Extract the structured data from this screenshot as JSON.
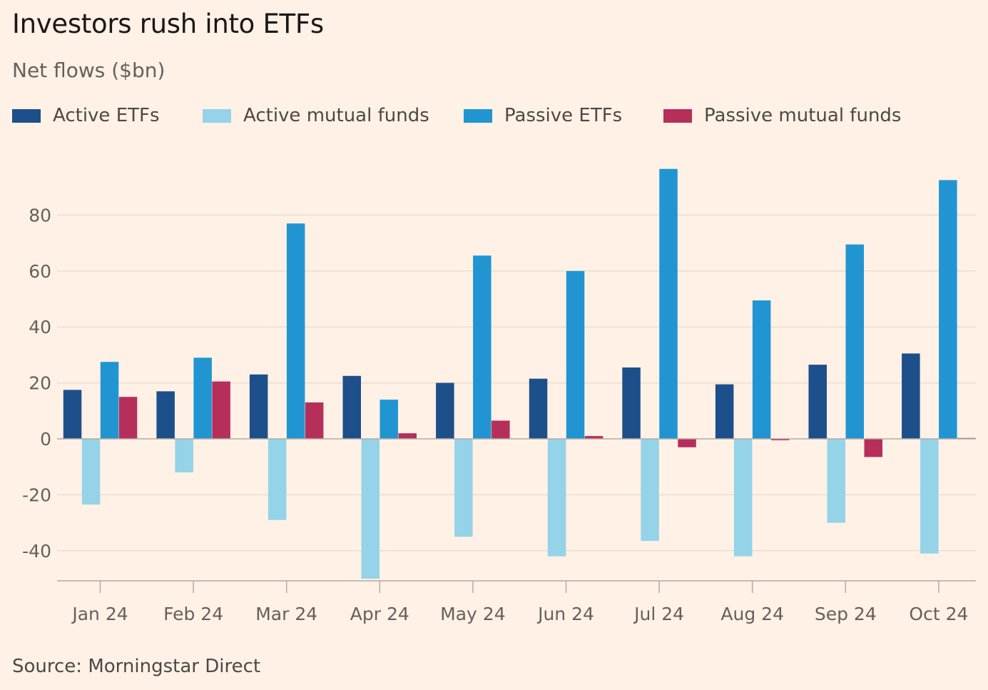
{
  "title": "Investors rush into ETFs",
  "subtitle": "Net flows ($bn)",
  "source": "Source: Morningstar Direct",
  "colors": {
    "background": "#fff1e5",
    "gridline": "#e8ddd3",
    "axis": "#b3aba3"
  },
  "chart_data": {
    "type": "bar",
    "title": "Investors rush into ETFs",
    "subtitle": "Net flows ($bn)",
    "categories": [
      "Jan 24",
      "Feb 24",
      "Mar 24",
      "Apr 24",
      "May 24",
      "Jun 24",
      "Jul 24",
      "Aug 24",
      "Sep 24",
      "Oct 24"
    ],
    "series": [
      {
        "name": "Active ETFs",
        "color": "#1d4f8b",
        "values": [
          17.5,
          17,
          23,
          22.5,
          20,
          21.5,
          25.5,
          19.5,
          26.5,
          30.5
        ]
      },
      {
        "name": "Active mutual funds",
        "color": "#94d3e8",
        "values": [
          -23.5,
          -12,
          -29,
          -50,
          -35,
          -42,
          -36.5,
          -42,
          -30,
          -41
        ]
      },
      {
        "name": "Passive ETFs",
        "color": "#2195d2",
        "values": [
          27.5,
          29,
          77,
          14,
          65.5,
          60,
          96.5,
          49.5,
          69.5,
          92.5
        ]
      },
      {
        "name": "Passive mutual funds",
        "color": "#b62f5a",
        "values": [
          15,
          20.5,
          13,
          2,
          6.5,
          1,
          -3,
          -0.5,
          -6.5,
          0.3
        ]
      }
    ],
    "yticks": [
      "80",
      "60",
      "40",
      "20",
      "0",
      "-20",
      "-40"
    ],
    "ytick_values": [
      80,
      60,
      40,
      20,
      0,
      -20,
      -40
    ],
    "ylim": [
      -50,
      97
    ],
    "grid": true,
    "legend": "top"
  }
}
